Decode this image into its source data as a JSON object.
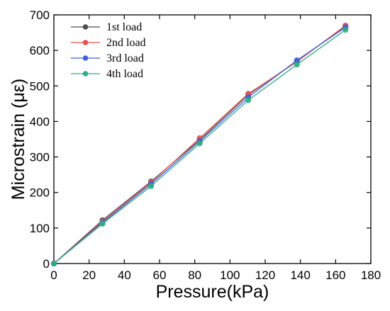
{
  "chart_data": {
    "type": "line",
    "xlabel": "Pressure(kPa)",
    "ylabel": "Microstrain (με)",
    "xlim": [
      0,
      180
    ],
    "ylim": [
      0,
      700
    ],
    "xticks": [
      0,
      20,
      40,
      60,
      80,
      100,
      120,
      140,
      160,
      180
    ],
    "yticks": [
      0,
      100,
      200,
      300,
      400,
      500,
      600,
      700
    ],
    "grid": false,
    "legend_position": "top-left",
    "x": [
      0,
      27.6,
      55.2,
      82.8,
      110.4,
      138,
      165.6
    ],
    "series": [
      {
        "name": "1st load",
        "color": "#4d4d4d",
        "values": [
          0,
          122,
          231,
          348,
          475,
          570,
          668
        ]
      },
      {
        "name": "2nd load",
        "color": "#e8524a",
        "values": [
          0,
          118,
          228,
          353,
          478,
          568,
          670
        ]
      },
      {
        "name": "3rd load",
        "color": "#3f5fe0",
        "values": [
          0,
          115,
          224,
          344,
          468,
          572,
          665
        ]
      },
      {
        "name": "4th load",
        "color": "#2ab07f",
        "values": [
          0,
          112,
          218,
          338,
          460,
          560,
          658
        ]
      }
    ]
  }
}
